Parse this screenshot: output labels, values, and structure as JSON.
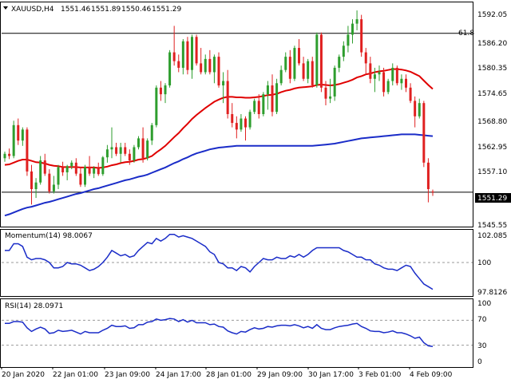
{
  "main": {
    "symbol_title": "XAUUSD,H4",
    "ohlc": [
      "1551.46",
      "1551.89",
      "1550.46",
      "1551.29"
    ],
    "fib_label": "61.8",
    "fib_level": 1587.3,
    "current_price": "1551.29",
    "current_price_value": 1551.29,
    "price_axis": [
      "1592.05",
      "1586.20",
      "1580.35",
      "1574.65",
      "1568.80",
      "1562.95",
      "1557.10",
      "1545.55"
    ],
    "colors": {
      "bull": "#2e9e2e",
      "bear": "#e02020",
      "ma_fast": "#e00000",
      "ma_slow": "#1a2cc8"
    }
  },
  "momentum": {
    "title": "Momentum(14) 98.0067",
    "axis": [
      "102.085",
      "100",
      "97.8126"
    ],
    "reference": 100,
    "color": "#1a2cc8"
  },
  "rsi": {
    "title": "RSI(14) 28.0971",
    "axis": [
      "100",
      "70",
      "30",
      "0"
    ],
    "levels": [
      70,
      30
    ],
    "color": "#1a2cc8"
  },
  "time_axis": [
    "20 Jan 2020",
    "22 Jan 01:00",
    "23 Jan 09:00",
    "24 Jan 17:00",
    "28 Jan 01:00",
    "29 Jan 09:00",
    "30 Jan 17:00",
    "3 Feb 01:00",
    "4 Feb 09:00"
  ],
  "chart_data": {
    "type": "candlestick",
    "title": "XAUUSD,H4",
    "ylim": [
      1543.5,
      1594.5
    ],
    "ohlc": [
      [
        1559.0,
        1560.5,
        1558.2,
        1560.0
      ],
      [
        1560.0,
        1561.2,
        1558.8,
        1559.5
      ],
      [
        1559.5,
        1567.5,
        1559.0,
        1566.5
      ],
      [
        1566.5,
        1568.0,
        1562.0,
        1563.0
      ],
      [
        1563.0,
        1566.0,
        1561.8,
        1565.5
      ],
      [
        1565.5,
        1566.0,
        1555.0,
        1556.0
      ],
      [
        1556.0,
        1557.5,
        1548.5,
        1552.0
      ],
      [
        1552.0,
        1554.5,
        1550.0,
        1553.5
      ],
      [
        1553.5,
        1559.5,
        1553.0,
        1558.5
      ],
      [
        1558.5,
        1560.0,
        1555.0,
        1555.5
      ],
      [
        1555.5,
        1556.5,
        1551.0,
        1551.5
      ],
      [
        1551.5,
        1555.0,
        1551.0,
        1553.0
      ],
      [
        1553.0,
        1557.5,
        1552.0,
        1557.0
      ],
      [
        1557.0,
        1558.2,
        1555.0,
        1555.8
      ],
      [
        1555.8,
        1557.5,
        1554.0,
        1557.2
      ],
      [
        1557.2,
        1558.5,
        1556.5,
        1558.0
      ],
      [
        1558.0,
        1559.0,
        1555.0,
        1555.5
      ],
      [
        1555.5,
        1557.0,
        1552.5,
        1553.0
      ],
      [
        1553.0,
        1557.5,
        1552.5,
        1557.0
      ],
      [
        1557.0,
        1559.5,
        1555.0,
        1555.5
      ],
      [
        1555.5,
        1557.2,
        1554.5,
        1556.8
      ],
      [
        1556.8,
        1558.0,
        1555.0,
        1555.4
      ],
      [
        1555.4,
        1559.5,
        1555.0,
        1559.2
      ],
      [
        1559.2,
        1562.0,
        1558.0,
        1561.0
      ],
      [
        1561.0,
        1566.0,
        1559.0,
        1561.5
      ],
      [
        1561.5,
        1562.5,
        1559.5,
        1560.0
      ],
      [
        1560.0,
        1562.5,
        1558.0,
        1561.5
      ],
      [
        1561.5,
        1562.5,
        1559.5,
        1560.0
      ],
      [
        1560.0,
        1561.0,
        1557.5,
        1558.5
      ],
      [
        1558.5,
        1562.0,
        1558.0,
        1561.5
      ],
      [
        1561.5,
        1564.0,
        1561.0,
        1563.5
      ],
      [
        1563.5,
        1566.0,
        1558.0,
        1559.0
      ],
      [
        1559.0,
        1563.5,
        1558.5,
        1563.0
      ],
      [
        1563.0,
        1567.0,
        1562.0,
        1566.5
      ],
      [
        1566.5,
        1575.5,
        1566.0,
        1575.0
      ],
      [
        1575.0,
        1576.5,
        1572.0,
        1573.5
      ],
      [
        1573.5,
        1576.0,
        1571.5,
        1575.5
      ],
      [
        1575.5,
        1583.5,
        1575.0,
        1583.0
      ],
      [
        1583.0,
        1589.0,
        1580.0,
        1581.0
      ],
      [
        1581.0,
        1582.5,
        1578.5,
        1579.5
      ],
      [
        1579.5,
        1586.0,
        1578.0,
        1585.5
      ],
      [
        1585.5,
        1586.5,
        1578.0,
        1579.0
      ],
      [
        1579.0,
        1587.0,
        1577.0,
        1586.5
      ],
      [
        1586.5,
        1587.0,
        1580.0,
        1580.5
      ],
      [
        1580.5,
        1584.0,
        1578.0,
        1578.5
      ],
      [
        1578.5,
        1582.5,
        1578.0,
        1581.5
      ],
      [
        1581.5,
        1583.5,
        1578.0,
        1578.5
      ],
      [
        1578.5,
        1582.5,
        1576.0,
        1582.0
      ],
      [
        1582.0,
        1583.0,
        1575.0,
        1575.5
      ],
      [
        1575.5,
        1578.5,
        1571.5,
        1576.5
      ],
      [
        1576.5,
        1579.0,
        1568.0,
        1569.0
      ],
      [
        1569.0,
        1571.5,
        1566.0,
        1567.0
      ],
      [
        1567.0,
        1568.5,
        1563.5,
        1565.5
      ],
      [
        1565.5,
        1569.0,
        1565.0,
        1568.0
      ],
      [
        1568.0,
        1568.5,
        1563.0,
        1566.0
      ],
      [
        1566.0,
        1570.0,
        1565.5,
        1569.5
      ],
      [
        1569.5,
        1572.5,
        1569.0,
        1572.0
      ],
      [
        1572.0,
        1573.5,
        1568.0,
        1569.0
      ],
      [
        1569.0,
        1574.0,
        1568.5,
        1573.5
      ],
      [
        1573.5,
        1576.5,
        1570.0,
        1575.5
      ],
      [
        1575.5,
        1578.0,
        1568.5,
        1569.5
      ],
      [
        1569.5,
        1577.0,
        1569.0,
        1576.0
      ],
      [
        1576.0,
        1580.0,
        1575.5,
        1579.0
      ],
      [
        1579.0,
        1583.0,
        1578.5,
        1582.0
      ],
      [
        1582.0,
        1583.5,
        1576.0,
        1577.0
      ],
      [
        1577.0,
        1584.5,
        1576.5,
        1584.0
      ],
      [
        1584.0,
        1586.0,
        1580.0,
        1580.5
      ],
      [
        1580.5,
        1582.0,
        1576.5,
        1577.0
      ],
      [
        1577.0,
        1581.5,
        1576.0,
        1581.0
      ],
      [
        1581.0,
        1582.0,
        1575.0,
        1575.5
      ],
      [
        1575.5,
        1587.5,
        1575.0,
        1587.0
      ],
      [
        1587.0,
        1587.5,
        1574.0,
        1575.0
      ],
      [
        1575.0,
        1576.5,
        1571.0,
        1572.5
      ],
      [
        1572.5,
        1577.0,
        1571.5,
        1573.0
      ],
      [
        1573.0,
        1580.0,
        1572.0,
        1579.5
      ],
      [
        1579.5,
        1582.5,
        1578.5,
        1582.0
      ],
      [
        1582.0,
        1585.5,
        1581.0,
        1584.5
      ],
      [
        1584.5,
        1589.0,
        1583.0,
        1587.0
      ],
      [
        1587.0,
        1590.5,
        1585.0,
        1589.5
      ],
      [
        1589.5,
        1592.5,
        1588.0,
        1590.5
      ],
      [
        1590.5,
        1591.5,
        1582.0,
        1583.0
      ],
      [
        1583.0,
        1584.0,
        1578.0,
        1580.5
      ],
      [
        1580.5,
        1582.0,
        1576.0,
        1577.0
      ],
      [
        1577.0,
        1579.5,
        1574.0,
        1578.0
      ],
      [
        1578.0,
        1580.0,
        1576.5,
        1578.5
      ],
      [
        1578.5,
        1579.5,
        1573.0,
        1574.0
      ],
      [
        1574.0,
        1577.0,
        1573.5,
        1576.5
      ],
      [
        1576.5,
        1580.5,
        1575.5,
        1579.5
      ],
      [
        1579.5,
        1580.0,
        1575.5,
        1576.0
      ],
      [
        1576.0,
        1578.0,
        1574.5,
        1577.0
      ],
      [
        1577.0,
        1578.0,
        1574.0,
        1575.0
      ],
      [
        1575.0,
        1576.0,
        1571.5,
        1572.0
      ],
      [
        1572.0,
        1573.0,
        1566.0,
        1568.5
      ],
      [
        1568.5,
        1572.5,
        1568.0,
        1571.5
      ],
      [
        1571.5,
        1572.0,
        1557.0,
        1558.0
      ],
      [
        1558.0,
        1559.0,
        1549.0,
        1552.0
      ],
      [
        1551.46,
        1551.89,
        1550.46,
        1551.29
      ]
    ],
    "ma_fast": [
      1557.5,
      1557.6,
      1558.0,
      1558.4,
      1558.7,
      1558.7,
      1558.4,
      1558.1,
      1558.0,
      1557.8,
      1557.5,
      1557.3,
      1557.2,
      1557.0,
      1557.0,
      1557.0,
      1557.0,
      1556.9,
      1556.9,
      1556.9,
      1556.9,
      1556.8,
      1556.9,
      1557.1,
      1557.4,
      1557.6,
      1557.9,
      1558.1,
      1558.2,
      1558.4,
      1558.7,
      1558.8,
      1559.1,
      1559.5,
      1560.3,
      1561.0,
      1561.8,
      1562.8,
      1563.8,
      1564.7,
      1565.8,
      1566.8,
      1567.9,
      1568.8,
      1569.6,
      1570.4,
      1571.1,
      1571.8,
      1572.3,
      1572.7,
      1572.9,
      1572.9,
      1572.8,
      1572.8,
      1572.7,
      1572.7,
      1572.8,
      1572.9,
      1573.1,
      1573.3,
      1573.4,
      1573.6,
      1574.0,
      1574.3,
      1574.5,
      1574.8,
      1575.0,
      1575.1,
      1575.2,
      1575.3,
      1575.6,
      1575.7,
      1575.6,
      1575.5,
      1575.6,
      1575.8,
      1576.1,
      1576.4,
      1576.8,
      1577.3,
      1577.6,
      1578.0,
      1578.2,
      1578.5,
      1578.7,
      1578.8,
      1579.0,
      1579.2,
      1579.2,
      1579.1,
      1578.9,
      1578.6,
      1578.1,
      1577.6,
      1576.6,
      1575.6,
      1574.7
    ],
    "ma_slow": [
      1546.0,
      1546.3,
      1546.7,
      1547.1,
      1547.5,
      1547.8,
      1548.0,
      1548.3,
      1548.6,
      1548.9,
      1549.1,
      1549.4,
      1549.7,
      1550.0,
      1550.3,
      1550.6,
      1550.9,
      1551.1,
      1551.4,
      1551.7,
      1552.0,
      1552.2,
      1552.5,
      1552.8,
      1553.1,
      1553.4,
      1553.7,
      1554.0,
      1554.2,
      1554.5,
      1554.8,
      1555.0,
      1555.3,
      1555.7,
      1556.1,
      1556.5,
      1556.9,
      1557.4,
      1557.9,
      1558.3,
      1558.8,
      1559.2,
      1559.7,
      1560.1,
      1560.4,
      1560.7,
      1561.0,
      1561.2,
      1561.4,
      1561.5,
      1561.6,
      1561.7,
      1561.8,
      1561.8,
      1561.8,
      1561.8,
      1561.8,
      1561.8,
      1561.8,
      1561.8,
      1561.8,
      1561.8,
      1561.8,
      1561.8,
      1561.8,
      1561.8,
      1561.8,
      1561.8,
      1561.8,
      1561.8,
      1561.9,
      1562.0,
      1562.1,
      1562.2,
      1562.3,
      1562.5,
      1562.7,
      1562.9,
      1563.1,
      1563.3,
      1563.5,
      1563.6,
      1563.7,
      1563.8,
      1563.9,
      1564.0,
      1564.1,
      1564.2,
      1564.3,
      1564.4,
      1564.4,
      1564.4,
      1564.4,
      1564.3,
      1564.2,
      1564.1,
      1564.0
    ],
    "momentum": {
      "ylim": [
        97.5,
        102.5
      ],
      "values": [
        100.9,
        100.9,
        101.4,
        101.4,
        101.2,
        100.4,
        100.2,
        100.3,
        100.3,
        100.2,
        100.0,
        99.6,
        99.6,
        99.7,
        100.0,
        99.9,
        99.9,
        99.8,
        99.6,
        99.4,
        99.5,
        99.7,
        100.0,
        100.4,
        100.9,
        100.7,
        100.5,
        100.6,
        100.4,
        100.5,
        100.9,
        101.2,
        101.5,
        101.4,
        101.8,
        101.6,
        101.8,
        102.1,
        102.1,
        101.9,
        102.0,
        101.9,
        101.8,
        101.6,
        101.4,
        101.2,
        100.8,
        100.6,
        100.0,
        99.9,
        99.6,
        99.6,
        99.4,
        99.7,
        99.6,
        99.3,
        99.7,
        100.0,
        100.3,
        100.2,
        100.2,
        100.4,
        100.3,
        100.3,
        100.5,
        100.4,
        100.6,
        100.4,
        100.6,
        100.9,
        101.1,
        101.1,
        101.1,
        101.1,
        101.1,
        101.1,
        100.9,
        100.8,
        100.6,
        100.4,
        100.4,
        100.2,
        100.2,
        99.9,
        99.8,
        99.6,
        99.5,
        99.5,
        99.4,
        99.6,
        99.8,
        99.7,
        99.2,
        98.8,
        98.4,
        98.2,
        98.0
      ]
    },
    "rsi": {
      "ylim": [
        0,
        100
      ],
      "values": [
        65,
        65,
        68,
        68,
        67,
        58,
        52,
        56,
        59,
        56,
        49,
        50,
        54,
        52,
        53,
        54,
        51,
        48,
        52,
        50,
        50,
        50,
        54,
        57,
        62,
        60,
        60,
        61,
        57,
        58,
        63,
        63,
        67,
        68,
        72,
        70,
        71,
        73,
        72,
        68,
        71,
        67,
        70,
        66,
        66,
        66,
        63,
        64,
        60,
        59,
        53,
        50,
        48,
        52,
        51,
        55,
        58,
        56,
        57,
        60,
        59,
        61,
        62,
        62,
        61,
        63,
        61,
        58,
        60,
        57,
        63,
        57,
        55,
        55,
        58,
        60,
        61,
        62,
        64,
        65,
        60,
        57,
        53,
        52,
        52,
        50,
        51,
        53,
        50,
        50,
        48,
        45,
        41,
        43,
        34,
        29,
        28
      ]
    }
  }
}
